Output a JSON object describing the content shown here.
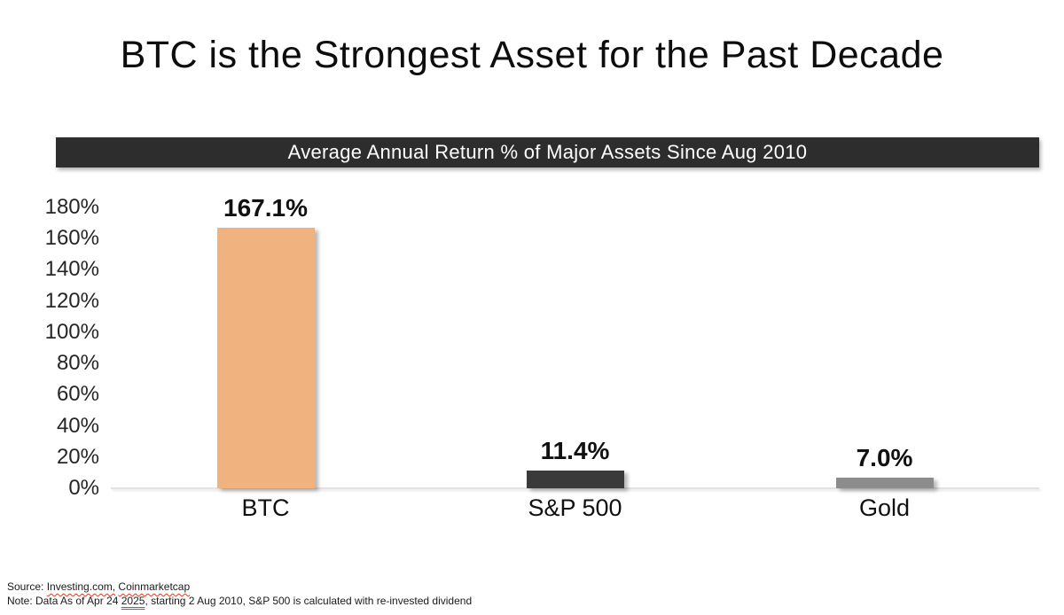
{
  "page": {
    "title": "BTC is the Strongest Asset for the Past Decade"
  },
  "chart_data": {
    "type": "bar",
    "title": "Average Annual Return % of Major Assets Since Aug 2010",
    "categories": [
      "BTC",
      "S&P 500",
      "Gold"
    ],
    "values": [
      167.1,
      11.4,
      7.0
    ],
    "value_labels": [
      "167.1%",
      "11.4%",
      "7.0%"
    ],
    "bar_colors": [
      "#F0B27F",
      "#3A3A3A",
      "#8C8C8C"
    ],
    "xlabel": "",
    "ylabel": "",
    "ylim": [
      0,
      180
    ],
    "ytick_step": 20,
    "ytick_labels": [
      "0%",
      "20%",
      "40%",
      "60%",
      "80%",
      "100%",
      "120%",
      "140%",
      "160%",
      "180%"
    ],
    "grid": false,
    "legend_position": "none"
  },
  "colors": {
    "banner_bg": "#2D2D2D",
    "banner_text": "#FFFFFF",
    "axis_line": "#E2E2E2",
    "spellcheck_red": "#D93C23",
    "grammar_blue": "#4472C4"
  },
  "footer": {
    "source_label": "Source:",
    "source_spellcheck_1": "Investing.com,",
    "source_spellcheck_2": "Coinmarketcap",
    "note_before_year": "Note: Data As of Apr 24 ",
    "note_year": "2025",
    "note_after_year": ", starting 2 Aug 2010, S&P 500 is calculated with re-invested dividend"
  }
}
